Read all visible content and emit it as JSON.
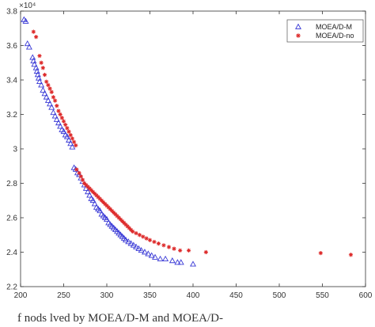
{
  "chart_data": {
    "type": "scatter",
    "title": "",
    "xlabel": "",
    "ylabel": "",
    "xlim": [
      200,
      600
    ],
    "ylim": [
      22000,
      38000
    ],
    "y_exponent_label": "×10⁴",
    "x_ticks": [
      "200",
      "250",
      "300",
      "350",
      "400",
      "450",
      "500",
      "550",
      "600"
    ],
    "y_ticks": [
      "2.2",
      "2.4",
      "2.6",
      "2.8",
      "3",
      "3.2",
      "3.4",
      "3.6",
      "3.8"
    ],
    "legend_position": "top-right",
    "grid": false,
    "series": [
      {
        "name": "MOEA/D-M",
        "marker": "triangle",
        "color": "#3a3ad6",
        "points": [
          [
            204,
            37500
          ],
          [
            206,
            37400
          ],
          [
            208,
            36100
          ],
          [
            210,
            35900
          ],
          [
            214,
            35300
          ],
          [
            215,
            35100
          ],
          [
            216,
            34900
          ],
          [
            218,
            34700
          ],
          [
            219,
            34500
          ],
          [
            220,
            34300
          ],
          [
            221,
            34100
          ],
          [
            222,
            33900
          ],
          [
            224,
            33700
          ],
          [
            226,
            33400
          ],
          [
            228,
            33200
          ],
          [
            230,
            33000
          ],
          [
            232,
            32800
          ],
          [
            234,
            32600
          ],
          [
            236,
            32400
          ],
          [
            238,
            32100
          ],
          [
            240,
            31900
          ],
          [
            242,
            31700
          ],
          [
            244,
            31500
          ],
          [
            246,
            31300
          ],
          [
            248,
            31100
          ],
          [
            250,
            31000
          ],
          [
            252,
            30800
          ],
          [
            254,
            30700
          ],
          [
            256,
            30500
          ],
          [
            258,
            30300
          ],
          [
            260,
            30100
          ],
          [
            262,
            28900
          ],
          [
            264,
            28800
          ],
          [
            266,
            28600
          ],
          [
            268,
            28500
          ],
          [
            270,
            28300
          ],
          [
            272,
            28100
          ],
          [
            274,
            27900
          ],
          [
            276,
            27700
          ],
          [
            278,
            27500
          ],
          [
            280,
            27300
          ],
          [
            282,
            27100
          ],
          [
            284,
            27000
          ],
          [
            286,
            26800
          ],
          [
            288,
            26600
          ],
          [
            290,
            26500
          ],
          [
            292,
            26400
          ],
          [
            294,
            26200
          ],
          [
            296,
            26100
          ],
          [
            298,
            26000
          ],
          [
            300,
            25900
          ],
          [
            302,
            25700
          ],
          [
            304,
            25600
          ],
          [
            306,
            25500
          ],
          [
            308,
            25400
          ],
          [
            310,
            25300
          ],
          [
            312,
            25200
          ],
          [
            314,
            25100
          ],
          [
            316,
            25000
          ],
          [
            318,
            24900
          ],
          [
            320,
            24800
          ],
          [
            322,
            24700
          ],
          [
            325,
            24600
          ],
          [
            328,
            24500
          ],
          [
            331,
            24400
          ],
          [
            334,
            24300
          ],
          [
            337,
            24200
          ],
          [
            340,
            24100
          ],
          [
            344,
            24000
          ],
          [
            348,
            23900
          ],
          [
            352,
            23800
          ],
          [
            356,
            23700
          ],
          [
            362,
            23600
          ],
          [
            368,
            23600
          ],
          [
            376,
            23500
          ],
          [
            382,
            23400
          ],
          [
            386,
            23400
          ],
          [
            400,
            23300
          ]
        ]
      },
      {
        "name": "MOEA/D-no",
        "marker": "asterisk",
        "color": "#dd2a2a",
        "points": [
          [
            215,
            36800
          ],
          [
            218,
            36500
          ],
          [
            222,
            35400
          ],
          [
            224,
            35000
          ],
          [
            226,
            34700
          ],
          [
            228,
            34300
          ],
          [
            230,
            33900
          ],
          [
            232,
            33700
          ],
          [
            234,
            33500
          ],
          [
            236,
            33300
          ],
          [
            238,
            33000
          ],
          [
            240,
            32800
          ],
          [
            242,
            32500
          ],
          [
            244,
            32200
          ],
          [
            246,
            32000
          ],
          [
            248,
            31800
          ],
          [
            250,
            31600
          ],
          [
            252,
            31400
          ],
          [
            254,
            31200
          ],
          [
            256,
            31000
          ],
          [
            258,
            30800
          ],
          [
            260,
            30600
          ],
          [
            262,
            30400
          ],
          [
            264,
            30200
          ],
          [
            265,
            28800
          ],
          [
            268,
            28600
          ],
          [
            270,
            28400
          ],
          [
            272,
            28200
          ],
          [
            274,
            28000
          ],
          [
            276,
            27900
          ],
          [
            278,
            27800
          ],
          [
            280,
            27700
          ],
          [
            282,
            27600
          ],
          [
            284,
            27500
          ],
          [
            286,
            27400
          ],
          [
            288,
            27300
          ],
          [
            290,
            27200
          ],
          [
            292,
            27100
          ],
          [
            294,
            27000
          ],
          [
            296,
            26900
          ],
          [
            298,
            26800
          ],
          [
            300,
            26700
          ],
          [
            302,
            26600
          ],
          [
            304,
            26500
          ],
          [
            306,
            26400
          ],
          [
            308,
            26300
          ],
          [
            310,
            26200
          ],
          [
            312,
            26100
          ],
          [
            314,
            26000
          ],
          [
            316,
            25900
          ],
          [
            318,
            25800
          ],
          [
            320,
            25700
          ],
          [
            322,
            25600
          ],
          [
            324,
            25500
          ],
          [
            326,
            25400
          ],
          [
            328,
            25300
          ],
          [
            330,
            25200
          ],
          [
            334,
            25100
          ],
          [
            338,
            25000
          ],
          [
            342,
            24900
          ],
          [
            346,
            24800
          ],
          [
            350,
            24700
          ],
          [
            355,
            24600
          ],
          [
            360,
            24500
          ],
          [
            366,
            24400
          ],
          [
            372,
            24300
          ],
          [
            378,
            24200
          ],
          [
            385,
            24100
          ],
          [
            395,
            24100
          ],
          [
            415,
            24000
          ],
          [
            548,
            23950
          ],
          [
            583,
            23850
          ]
        ]
      }
    ]
  },
  "caption": {
    "text": "f   nods    lved by MOEA/D-M and MOEA/D-"
  }
}
